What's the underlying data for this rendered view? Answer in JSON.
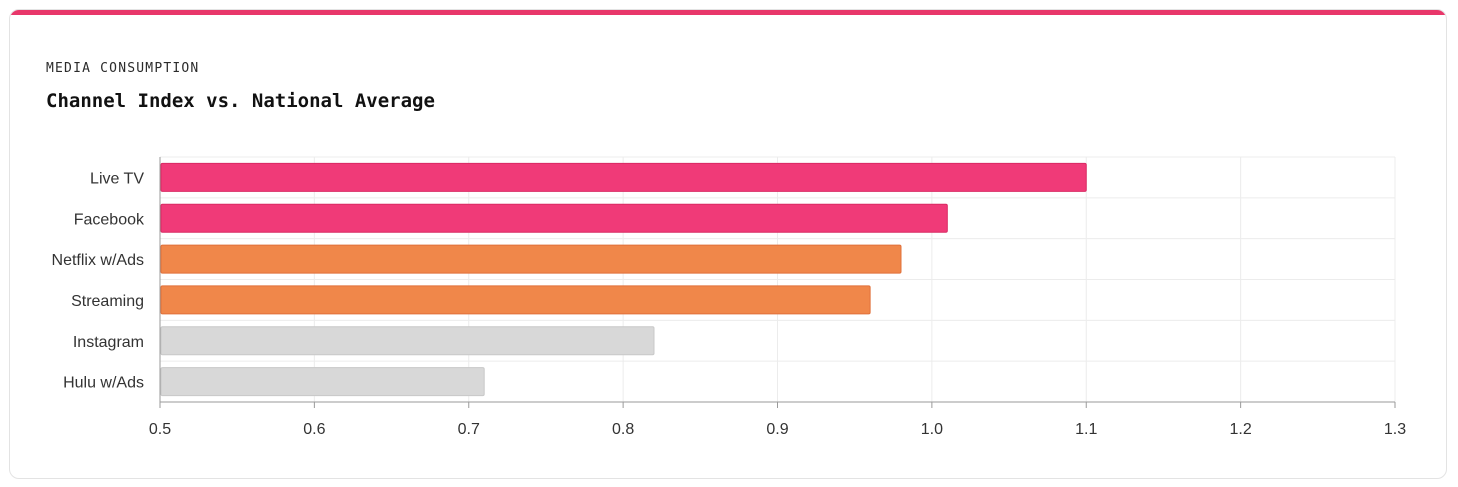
{
  "header": {
    "eyebrow": "MEDIA CONSUMPTION",
    "title": "Channel Index vs. National Average"
  },
  "colors": {
    "accent": "#e8376a",
    "high": "#f03a78",
    "mid": "#f0874a",
    "low": "#d8d8d8"
  },
  "chart_data": {
    "type": "bar",
    "orientation": "horizontal",
    "title": "Channel Index vs. National Average",
    "xlabel": "",
    "ylabel": "",
    "categories": [
      "Live TV",
      "Facebook",
      "Netflix w/Ads",
      "Streaming",
      "Instagram",
      "Hulu w/Ads"
    ],
    "values": [
      1.1,
      1.01,
      0.98,
      0.96,
      0.82,
      0.71
    ],
    "bar_colors": [
      "#f03a78",
      "#f03a78",
      "#f0874a",
      "#f0874a",
      "#d8d8d8",
      "#d8d8d8"
    ],
    "xlim": [
      0.5,
      1.3
    ],
    "xticks": [
      "0.5",
      "0.6",
      "0.7",
      "0.8",
      "0.9",
      "1.0",
      "1.1",
      "1.2",
      "1.3"
    ],
    "grid": true,
    "legend": "none"
  }
}
